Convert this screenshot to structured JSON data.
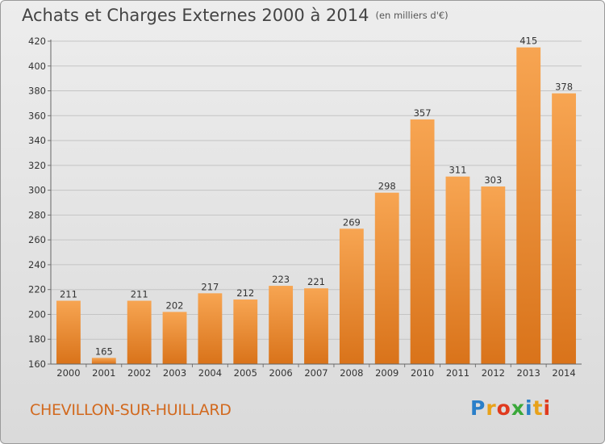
{
  "chart_data": {
    "type": "bar",
    "title": "Achats et Charges Externes 2000 à 2014",
    "subtitle": "(en milliers d'€)",
    "categories": [
      "2000",
      "2001",
      "2002",
      "2003",
      "2004",
      "2005",
      "2006",
      "2007",
      "2008",
      "2009",
      "2010",
      "2011",
      "2012",
      "2013",
      "2014"
    ],
    "values": [
      211,
      165,
      211,
      202,
      217,
      212,
      223,
      221,
      269,
      298,
      357,
      311,
      303,
      415,
      378
    ],
    "ylim": [
      160,
      420
    ],
    "yticks": [
      160,
      180,
      200,
      220,
      240,
      260,
      280,
      300,
      320,
      340,
      360,
      380,
      400,
      420
    ],
    "grid": true,
    "bar_color": "#f08c2c"
  },
  "location": "CHEVILLON-SUR-HUILLARD",
  "logo": {
    "text": "Proxiti",
    "colors": [
      "#2a7fc9",
      "#e8a21a",
      "#e03a1e",
      "#3aa83a",
      "#2a7fc9",
      "#e8a21a",
      "#e03a1e"
    ]
  }
}
